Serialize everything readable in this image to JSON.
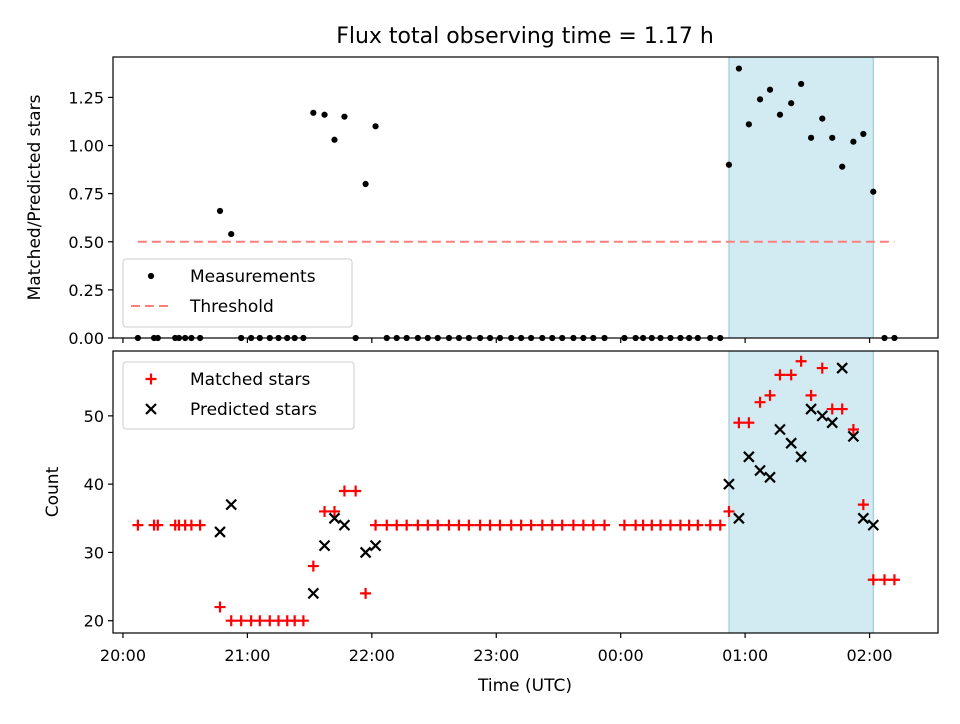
{
  "figure": {
    "title": "Flux total observing time = 1.17 h",
    "xlabel": "Time (UTC)"
  },
  "chart_data": [
    {
      "type": "scatter",
      "ylabel": "Matched/Predicted stars",
      "ylim": [
        0,
        1.46
      ],
      "yticks": [
        0,
        0.25,
        0.5,
        0.75,
        1.0,
        1.25
      ],
      "ytick_labels": [
        "0.00",
        "0.25",
        "0.50",
        "0.75",
        "1.00",
        "1.25"
      ],
      "xlim_hours": [
        19.92,
        26.55
      ],
      "xticks_hours": [
        20,
        21,
        22,
        23,
        24,
        25,
        26
      ],
      "xtick_labels": [
        "20:00",
        "21:00",
        "22:00",
        "23:00",
        "00:00",
        "01:00",
        "02:00"
      ],
      "show_xtick_labels": false,
      "shaded_span_hours": [
        24.87,
        26.03
      ],
      "shade_color": "#add8e6",
      "legend_position": "lower-left",
      "series": [
        {
          "name": "Measurements",
          "marker": "dot",
          "color": "#000000",
          "x_hours": [
            20.12,
            20.25,
            20.28,
            20.42,
            20.45,
            20.5,
            20.55,
            20.62,
            20.78,
            20.87,
            20.95,
            21.03,
            21.1,
            21.18,
            21.25,
            21.32,
            21.38,
            21.45,
            21.53,
            21.62,
            21.7,
            21.78,
            21.87,
            21.95,
            22.03,
            22.12,
            22.2,
            22.28,
            22.37,
            22.45,
            22.53,
            22.62,
            22.7,
            22.78,
            22.87,
            22.95,
            23.03,
            23.12,
            23.2,
            23.28,
            23.37,
            23.45,
            23.53,
            23.62,
            23.7,
            23.78,
            23.87,
            24.03,
            24.12,
            24.18,
            24.25,
            24.32,
            24.4,
            24.48,
            24.55,
            24.62,
            24.72,
            24.8,
            24.87,
            24.95,
            25.03,
            25.12,
            25.2,
            25.28,
            25.37,
            25.45,
            25.53,
            25.62,
            25.7,
            25.78,
            25.87,
            25.95,
            26.03,
            26.12,
            26.2
          ],
          "y": [
            0,
            0,
            0,
            0,
            0,
            0,
            0,
            0,
            0.66,
            0.54,
            0,
            0,
            0,
            0,
            0,
            0,
            0,
            0,
            1.17,
            1.16,
            1.03,
            1.15,
            0,
            0.8,
            1.1,
            0,
            0,
            0,
            0,
            0,
            0,
            0,
            0,
            0,
            0,
            0,
            0,
            0,
            0,
            0,
            0,
            0,
            0,
            0,
            0,
            0,
            0,
            0,
            0,
            0,
            0,
            0,
            0,
            0,
            0,
            0,
            0,
            0,
            0.9,
            1.4,
            1.11,
            1.24,
            1.29,
            1.16,
            1.22,
            1.32,
            1.04,
            1.14,
            1.04,
            0.89,
            1.02,
            1.06,
            0.76,
            0,
            0
          ]
        },
        {
          "name": "Threshold",
          "marker": "dashed-line",
          "color": "#ff7f7f",
          "x_hours": [
            20.12,
            26.2
          ],
          "y": [
            0.5,
            0.5
          ]
        }
      ]
    },
    {
      "type": "scatter",
      "ylabel": "Count",
      "ylim": [
        18.2,
        59.5
      ],
      "yticks": [
        20,
        30,
        40,
        50
      ],
      "ytick_labels": [
        "20",
        "30",
        "40",
        "50"
      ],
      "xlim_hours": [
        19.92,
        26.55
      ],
      "xticks_hours": [
        20,
        21,
        22,
        23,
        24,
        25,
        26
      ],
      "xtick_labels": [
        "20:00",
        "21:00",
        "22:00",
        "23:00",
        "00:00",
        "01:00",
        "02:00"
      ],
      "show_xtick_labels": true,
      "shaded_span_hours": [
        24.87,
        26.03
      ],
      "shade_color": "#add8e6",
      "legend_position": "upper-left",
      "series": [
        {
          "name": "Matched stars",
          "marker": "plus",
          "color": "#ff0000",
          "x_hours": [
            20.12,
            20.25,
            20.28,
            20.42,
            20.45,
            20.5,
            20.55,
            20.62,
            20.78,
            20.87,
            20.95,
            21.03,
            21.1,
            21.18,
            21.25,
            21.32,
            21.38,
            21.45,
            21.53,
            21.62,
            21.7,
            21.78,
            21.87,
            21.95,
            22.03,
            22.12,
            22.2,
            22.28,
            22.37,
            22.45,
            22.53,
            22.62,
            22.7,
            22.78,
            22.87,
            22.95,
            23.03,
            23.12,
            23.2,
            23.28,
            23.37,
            23.45,
            23.53,
            23.62,
            23.7,
            23.78,
            23.87,
            24.03,
            24.12,
            24.18,
            24.25,
            24.32,
            24.4,
            24.48,
            24.55,
            24.62,
            24.72,
            24.8,
            24.87,
            24.95,
            25.03,
            25.12,
            25.2,
            25.28,
            25.37,
            25.45,
            25.53,
            25.62,
            25.7,
            25.78,
            25.87,
            25.95,
            26.03,
            26.12,
            26.2
          ],
          "y": [
            34,
            34,
            34,
            34,
            34,
            34,
            34,
            34,
            22,
            20,
            20,
            20,
            20,
            20,
            20,
            20,
            20,
            20,
            28,
            36,
            36,
            39,
            39,
            24,
            34,
            34,
            34,
            34,
            34,
            34,
            34,
            34,
            34,
            34,
            34,
            34,
            34,
            34,
            34,
            34,
            34,
            34,
            34,
            34,
            34,
            34,
            34,
            34,
            34,
            34,
            34,
            34,
            34,
            34,
            34,
            34,
            34,
            34,
            36,
            49,
            49,
            52,
            53,
            56,
            56,
            58,
            53,
            57,
            51,
            51,
            48,
            37,
            26,
            26,
            26
          ]
        },
        {
          "name": "Predicted stars",
          "marker": "x",
          "color": "#000000",
          "x_hours": [
            20.78,
            20.87,
            21.53,
            21.62,
            21.7,
            21.78,
            21.95,
            22.03,
            24.87,
            24.95,
            25.03,
            25.12,
            25.2,
            25.28,
            25.37,
            25.45,
            25.53,
            25.62,
            25.7,
            25.78,
            25.87,
            25.95,
            26.03
          ],
          "y": [
            33,
            37,
            24,
            31,
            35,
            34,
            30,
            31,
            40,
            35,
            44,
            42,
            41,
            48,
            46,
            44,
            51,
            50,
            49,
            57,
            47,
            35,
            34
          ]
        }
      ]
    }
  ]
}
